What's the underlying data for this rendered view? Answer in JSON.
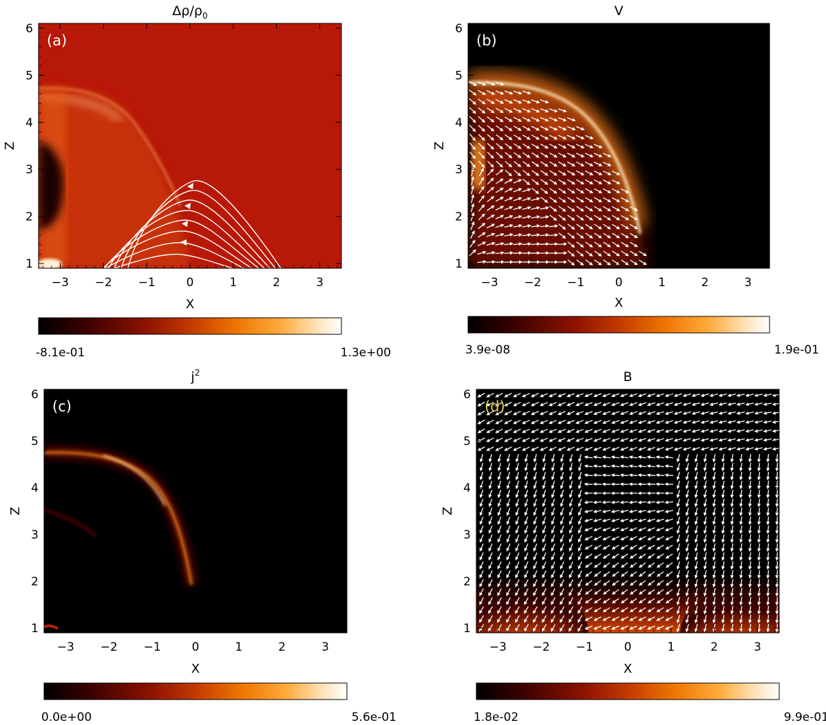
{
  "chart_data": [
    {
      "type": "heatmap",
      "panel_label": "(a)",
      "title_main": "Δρ/ρ",
      "title_sub": "0",
      "xlabel": "X",
      "ylabel": "Z",
      "xlim": [
        -3.5,
        3.5
      ],
      "ylim": [
        0.9,
        6.1
      ],
      "xticks": [
        -3,
        -2,
        -1,
        0,
        1,
        2,
        3
      ],
      "yticks": [
        1,
        2,
        3,
        4,
        5,
        6
      ],
      "xtick_labels": [
        "−3",
        "−2",
        "−1",
        "0",
        "1",
        "2",
        "3"
      ],
      "ytick_labels": [
        "1",
        "2",
        "3",
        "4",
        "5",
        "6"
      ],
      "colorbar_min_label": "-8.1e-01",
      "colorbar_max_label": "1.3e+00",
      "overlay": "field-lines",
      "label_color": "#ffffff"
    },
    {
      "type": "heatmap",
      "panel_label": "(b)",
      "title_main": "V",
      "title_sub": "",
      "xlabel": "X",
      "ylabel": "Z",
      "xlim": [
        -3.5,
        3.5
      ],
      "ylim": [
        0.9,
        6.1
      ],
      "xticks": [
        -3,
        -2,
        -1,
        0,
        1,
        2,
        3
      ],
      "yticks": [
        1,
        2,
        3,
        4,
        5,
        6
      ],
      "xtick_labels": [
        "−3",
        "−2",
        "−1",
        "0",
        "1",
        "2",
        "3"
      ],
      "ytick_labels": [
        "1",
        "2",
        "3",
        "4",
        "5",
        "6"
      ],
      "colorbar_min_label": "3.9e-08",
      "colorbar_max_label": "1.9e-01",
      "overlay": "velocity-arrows",
      "label_color": "#ffffff"
    },
    {
      "type": "heatmap",
      "panel_label": "(c)",
      "title_main": "j",
      "title_sub": "2",
      "xlabel": "X",
      "ylabel": "Z",
      "xlim": [
        -3.5,
        3.5
      ],
      "ylim": [
        0.9,
        6.1
      ],
      "xticks": [
        -3,
        -2,
        -1,
        0,
        1,
        2,
        3
      ],
      "yticks": [
        1,
        2,
        3,
        4,
        5,
        6
      ],
      "xtick_labels": [
        "−3",
        "−2",
        "−1",
        "0",
        "1",
        "2",
        "3"
      ],
      "ytick_labels": [
        "1",
        "2",
        "3",
        "4",
        "5",
        "6"
      ],
      "colorbar_min_label": "0.0e+00",
      "colorbar_max_label": "5.6e-01",
      "overlay": "none",
      "label_color": "#ffffff"
    },
    {
      "type": "heatmap",
      "panel_label": "(d)",
      "title_main": "B",
      "title_sub": "",
      "xlabel": "X",
      "ylabel": "Z",
      "xlim": [
        -3.5,
        3.5
      ],
      "ylim": [
        0.9,
        6.1
      ],
      "xticks": [
        -3,
        -2,
        -1,
        0,
        1,
        2,
        3
      ],
      "yticks": [
        1,
        2,
        3,
        4,
        5,
        6
      ],
      "xtick_labels": [
        "−3",
        "−2",
        "−1",
        "0",
        "1",
        "2",
        "3"
      ],
      "ytick_labels": [
        "1",
        "2",
        "3",
        "4",
        "5",
        "6"
      ],
      "colorbar_min_label": "1.8e-02",
      "colorbar_max_label": "9.9e-01",
      "overlay": "field-arrows",
      "label_color": "#e8d24a"
    }
  ],
  "colormap": [
    "#000000",
    "#3a0000",
    "#8c1200",
    "#c23a00",
    "#ee7400",
    "#ffab3c",
    "#ffe2b8",
    "#ffffff"
  ]
}
